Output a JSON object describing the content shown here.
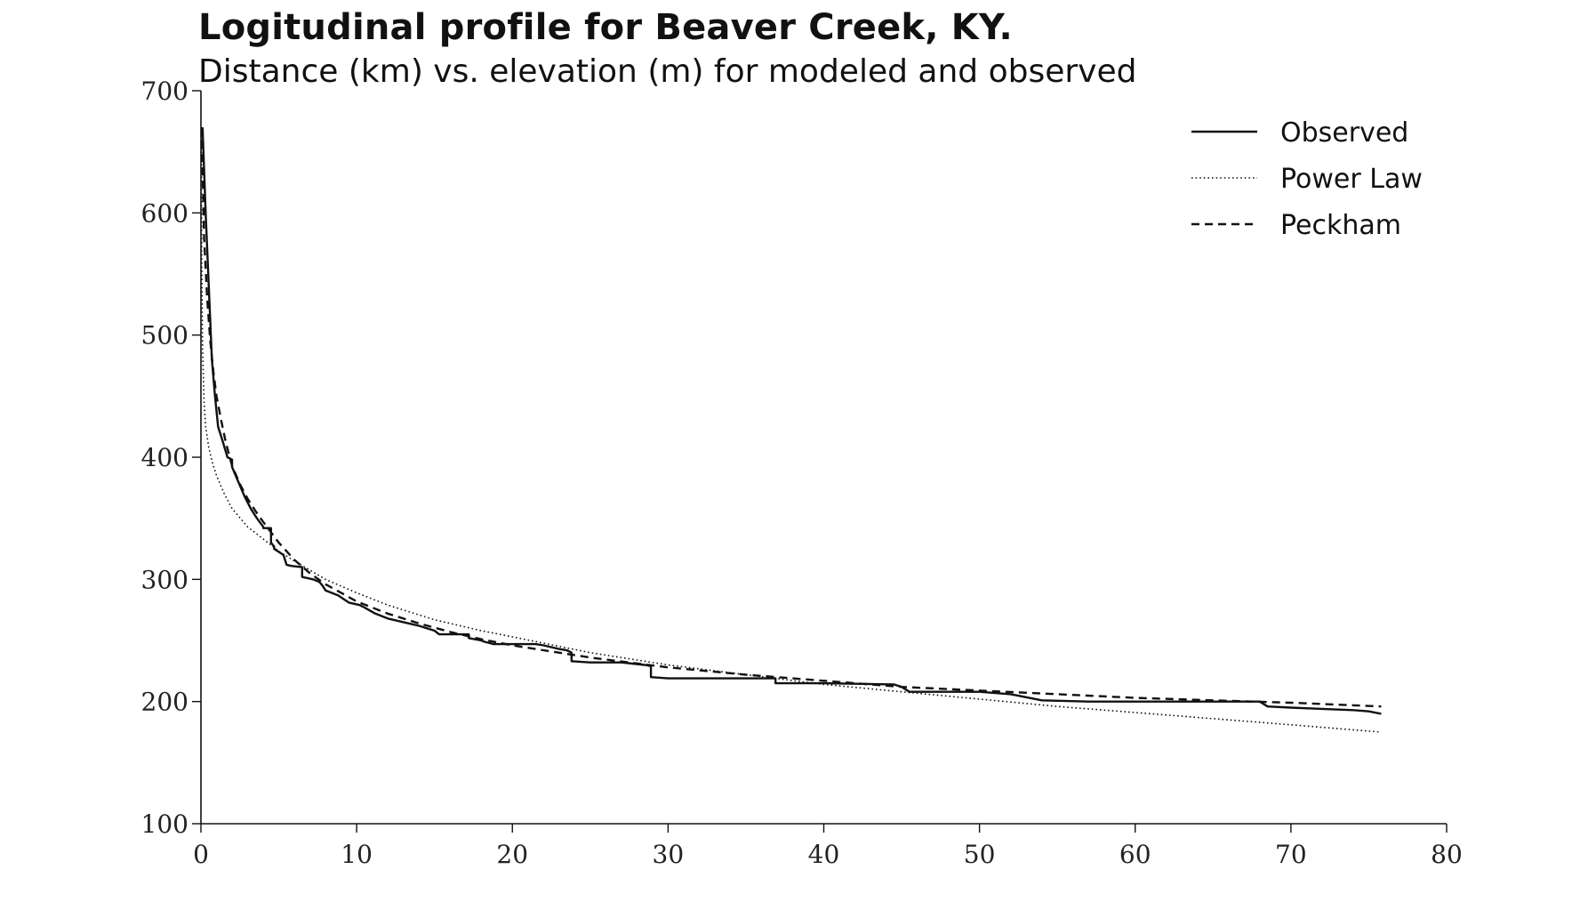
{
  "chart_data": {
    "type": "line",
    "title": "Logitudinal profile for Beaver Creek, KY.",
    "subtitle": "Distance (km) vs. elevation (m) for modeled and observed",
    "xlabel": "",
    "ylabel": "",
    "xlim": [
      0,
      80
    ],
    "ylim": [
      100,
      700
    ],
    "x_ticks": [
      "0",
      "10",
      "20",
      "30",
      "40",
      "50",
      "60",
      "70",
      "80"
    ],
    "y_ticks": [
      "100",
      "200",
      "300",
      "400",
      "500",
      "600",
      "700"
    ],
    "grid": false,
    "legend_position": "top-right",
    "series": [
      {
        "name": "Observed",
        "style": "solid",
        "color": "#111111",
        "x": [
          0.1,
          0.3,
          0.5,
          0.7,
          0.9,
          1.1,
          1.4,
          1.7,
          2.0,
          2.0,
          2.4,
          2.8,
          3.2,
          3.6,
          4.0,
          4.0,
          4.5,
          4.5,
          4.7,
          4.7,
          5.3,
          5.5,
          5.8,
          6.5,
          6.5,
          7.2,
          7.6,
          7.8,
          8.0,
          8.8,
          9.5,
          10.2,
          10.5,
          11.2,
          12.0,
          13.0,
          14.0,
          15.0,
          15.3,
          17.2,
          17.2,
          18.0,
          18.2,
          18.8,
          19.5,
          20.2,
          21.5,
          22.0,
          23.0,
          23.5,
          23.8,
          23.8,
          25.0,
          27.0,
          28.5,
          28.9,
          28.9,
          30.0,
          33.0,
          36.5,
          36.9,
          36.9,
          40.0,
          44.5,
          45.0,
          45.5,
          50.0,
          52.0,
          54.0,
          57.0,
          60.0,
          63.0,
          66.0,
          68.0,
          68.5,
          70.0,
          72.0,
          74.0,
          75.0,
          75.8
        ],
        "y": [
          670,
          600,
          540,
          480,
          450,
          425,
          413,
          400,
          398,
          392,
          380,
          368,
          358,
          350,
          343,
          342,
          342,
          330,
          327,
          325,
          320,
          312,
          311,
          310,
          302,
          300,
          298,
          295,
          291,
          287,
          281,
          279,
          277,
          272,
          268,
          265,
          262,
          258,
          255,
          255,
          252,
          250,
          249,
          247,
          247,
          247,
          247,
          246,
          243,
          242,
          240,
          233,
          232,
          232,
          230,
          229,
          220,
          219,
          219,
          219,
          219,
          215,
          215,
          214,
          212,
          208,
          208,
          206,
          201,
          200,
          200,
          200,
          200,
          200,
          196,
          195,
          194,
          193,
          192,
          190
        ]
      },
      {
        "name": "Power Law",
        "style": "dotted",
        "color": "#111111",
        "x": [
          0.02,
          0.05,
          0.1,
          0.2,
          0.3,
          0.5,
          0.7,
          1.0,
          1.5,
          2.0,
          3.0,
          4.0,
          5.0,
          6.0,
          8.0,
          10.0,
          12.0,
          15.0,
          18.0,
          20.0,
          25.0,
          30.0,
          35.0,
          40.0,
          45.0,
          50.0,
          55.0,
          60.0,
          65.0,
          70.0,
          75.8
        ],
        "y": [
          670,
          560,
          490,
          445,
          425,
          408,
          397,
          385,
          370,
          358,
          343,
          333,
          323,
          315,
          300,
          289,
          279,
          267,
          258,
          253,
          240,
          230,
          222,
          214,
          208,
          202,
          196,
          191,
          186,
          181,
          175
        ]
      },
      {
        "name": "Peckham",
        "style": "dashed",
        "color": "#111111",
        "x": [
          0.05,
          0.2,
          0.4,
          0.6,
          0.8,
          1.0,
          1.3,
          1.6,
          2.0,
          2.5,
          3.0,
          3.5,
          4.0,
          5.0,
          6.0,
          7.0,
          8.0,
          9.0,
          10.0,
          12.0,
          14.0,
          16.0,
          18.0,
          20.0,
          22.0,
          25.0,
          30.0,
          35.0,
          40.0,
          45.0,
          50.0,
          55.0,
          60.0,
          65.0,
          70.0,
          75.8
        ],
        "y": [
          670,
          580,
          530,
          495,
          470,
          450,
          430,
          412,
          393,
          378,
          366,
          356,
          347,
          330,
          316,
          305,
          296,
          289,
          282,
          272,
          264,
          257,
          251,
          246,
          242,
          236,
          228,
          222,
          217,
          212,
          209,
          206,
          203,
          201,
          199,
          196
        ]
      }
    ]
  }
}
